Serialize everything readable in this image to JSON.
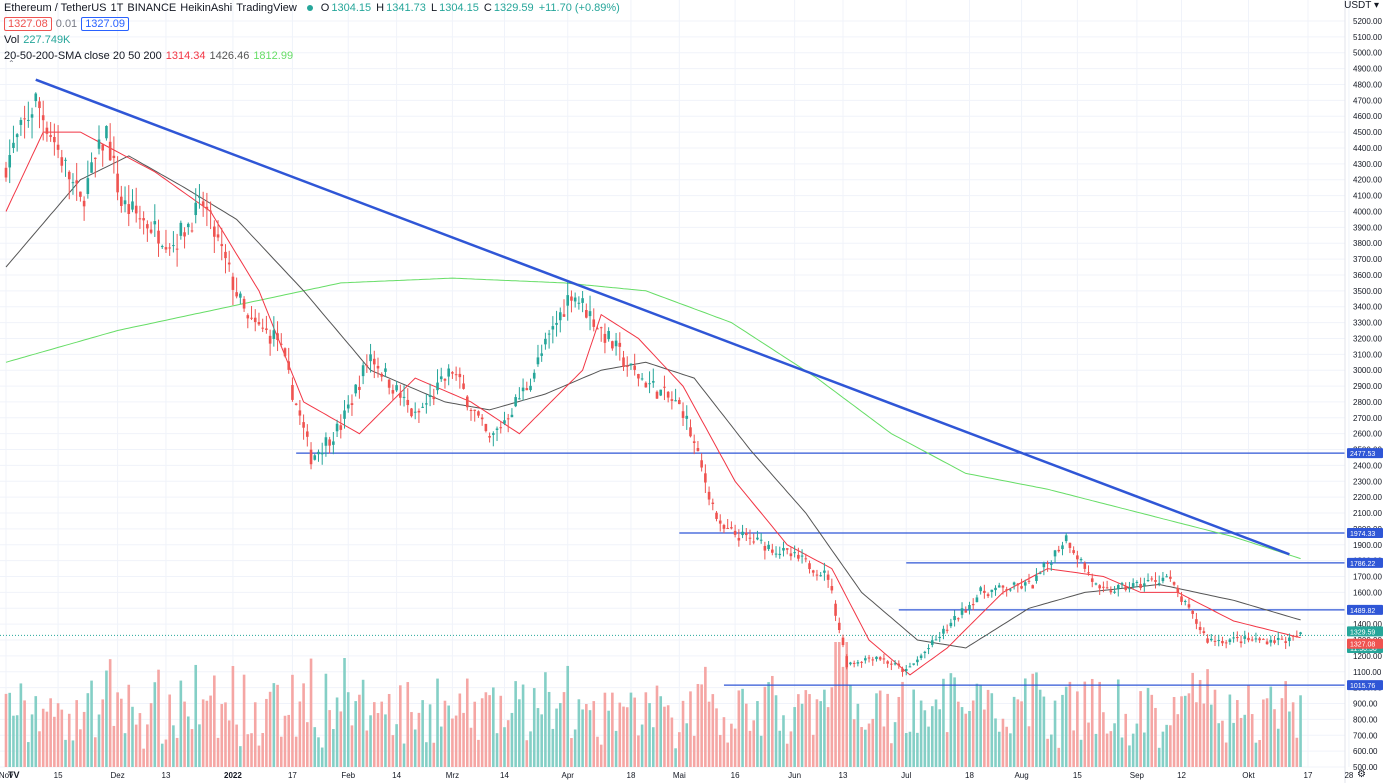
{
  "header": {
    "symbol": "Ethereum / TetherUS",
    "interval": "1T",
    "exchange": "BINANCE",
    "style": "HeikinAshi",
    "source": "TradingView",
    "o_label": "O",
    "o": "1304.15",
    "h_label": "H",
    "h": "1341.73",
    "l_label": "L",
    "l": "1304.15",
    "c_label": "C",
    "c": "1329.59",
    "change": "+11.70 (+0.89%)",
    "bid": "1327.08",
    "spread": "0.01",
    "ask": "1327.09"
  },
  "volume_legend": {
    "label": "Vol",
    "value": "227.749K"
  },
  "sma_legend": {
    "label": "20-50-200-SMA close 20 50 200",
    "sma20": "1314.34",
    "sma50": "1426.46",
    "sma200": "1812.99"
  },
  "currency": "USDT",
  "colors": {
    "up": "#26a69a",
    "down": "#ef5350",
    "volume_up": "#84cfc6",
    "volume_down": "#f5a6a4",
    "sma20": "#f23645",
    "sma50": "#555555",
    "sma200": "#66dd66",
    "drawing": "#2f56d6"
  },
  "chart_data": {
    "type": "candlestick",
    "ylim": [
      500,
      5300
    ],
    "y_ticks": [
      "5200.00",
      "5100.00",
      "5000.00",
      "4900.00",
      "4800.00",
      "4700.00",
      "4600.00",
      "4500.00",
      "4400.00",
      "4300.00",
      "4200.00",
      "4100.00",
      "4000.00",
      "3900.00",
      "3800.00",
      "3700.00",
      "3600.00",
      "3500.00",
      "3400.00",
      "3300.00",
      "3200.00",
      "3100.00",
      "3000.00",
      "2900.00",
      "2800.00",
      "2700.00",
      "2600.00",
      "2500.00",
      "2400.00",
      "2300.00",
      "2200.00",
      "2100.00",
      "2000.00",
      "1900.00",
      "1800.00",
      "1700.00",
      "1600.00",
      "1500.00",
      "1400.00",
      "1300.00",
      "1200.00",
      "1100.00",
      "1000.00",
      "900.00",
      "800.00",
      "700.00",
      "600.00",
      "500.00"
    ],
    "x_labels": [
      "Nov",
      "15",
      "Dez",
      "13",
      "2022",
      "17",
      "Feb",
      "14",
      "Mrz",
      "14",
      "Apr",
      "18",
      "Mai",
      "16",
      "Jun",
      "13",
      "Jul",
      "18",
      "Aug",
      "15",
      "Sep",
      "12",
      "Okt",
      "17",
      "28"
    ],
    "x_label_days": [
      0,
      14,
      30,
      43,
      61,
      77,
      92,
      105,
      120,
      134,
      151,
      168,
      181,
      196,
      212,
      225,
      242,
      259,
      273,
      288,
      304,
      316,
      334,
      350,
      361
    ],
    "close_anchors": [
      [
        0,
        4300
      ],
      [
        8,
        4700
      ],
      [
        12,
        4500
      ],
      [
        20,
        4050
      ],
      [
        27,
        4500
      ],
      [
        31,
        4050
      ],
      [
        45,
        3800
      ],
      [
        53,
        4050
      ],
      [
        65,
        3300
      ],
      [
        73,
        3200
      ],
      [
        82,
        2450
      ],
      [
        90,
        2650
      ],
      [
        98,
        3100
      ],
      [
        110,
        2700
      ],
      [
        120,
        3000
      ],
      [
        130,
        2550
      ],
      [
        140,
        2900
      ],
      [
        152,
        3500
      ],
      [
        157,
        3350
      ],
      [
        168,
        3000
      ],
      [
        182,
        2750
      ],
      [
        192,
        2000
      ],
      [
        204,
        1900
      ],
      [
        214,
        1800
      ],
      [
        221,
        1700
      ],
      [
        226,
        1150
      ],
      [
        234,
        1200
      ],
      [
        242,
        1100
      ],
      [
        252,
        1350
      ],
      [
        262,
        1600
      ],
      [
        276,
        1650
      ],
      [
        285,
        1950
      ],
      [
        294,
        1600
      ],
      [
        305,
        1650
      ],
      [
        312,
        1700
      ],
      [
        323,
        1300
      ],
      [
        330,
        1300
      ],
      [
        345,
        1300
      ],
      [
        348,
        1329.59
      ]
    ],
    "sma20_anchors": [
      [
        0,
        4000
      ],
      [
        10,
        4500
      ],
      [
        20,
        4500
      ],
      [
        40,
        4250
      ],
      [
        55,
        4000
      ],
      [
        68,
        3500
      ],
      [
        80,
        2800
      ],
      [
        95,
        2600
      ],
      [
        110,
        2950
      ],
      [
        125,
        2800
      ],
      [
        138,
        2600
      ],
      [
        155,
        3000
      ],
      [
        160,
        3350
      ],
      [
        170,
        3200
      ],
      [
        182,
        2900
      ],
      [
        196,
        2300
      ],
      [
        210,
        1900
      ],
      [
        222,
        1750
      ],
      [
        232,
        1300
      ],
      [
        243,
        1080
      ],
      [
        253,
        1250
      ],
      [
        268,
        1600
      ],
      [
        280,
        1750
      ],
      [
        295,
        1700
      ],
      [
        305,
        1600
      ],
      [
        315,
        1600
      ],
      [
        330,
        1420
      ],
      [
        348,
        1314.34
      ]
    ],
    "sma50_anchors": [
      [
        0,
        3650
      ],
      [
        20,
        4200
      ],
      [
        33,
        4350
      ],
      [
        48,
        4150
      ],
      [
        62,
        3950
      ],
      [
        80,
        3500
      ],
      [
        98,
        3000
      ],
      [
        118,
        2800
      ],
      [
        130,
        2750
      ],
      [
        145,
        2850
      ],
      [
        160,
        3000
      ],
      [
        172,
        3050
      ],
      [
        185,
        2950
      ],
      [
        200,
        2500
      ],
      [
        215,
        2100
      ],
      [
        230,
        1600
      ],
      [
        245,
        1300
      ],
      [
        258,
        1250
      ],
      [
        275,
        1500
      ],
      [
        290,
        1600
      ],
      [
        310,
        1650
      ],
      [
        330,
        1550
      ],
      [
        348,
        1426.46
      ]
    ],
    "sma200_anchors": [
      [
        0,
        3050
      ],
      [
        30,
        3250
      ],
      [
        60,
        3400
      ],
      [
        90,
        3550
      ],
      [
        120,
        3580
      ],
      [
        150,
        3550
      ],
      [
        172,
        3500
      ],
      [
        195,
        3300
      ],
      [
        218,
        2950
      ],
      [
        238,
        2600
      ],
      [
        258,
        2350
      ],
      [
        280,
        2250
      ],
      [
        305,
        2100
      ],
      [
        330,
        1950
      ],
      [
        348,
        1812.99
      ]
    ],
    "horizontal_levels": [
      {
        "price": 2477.53,
        "label": "2477.53",
        "from_day": 78
      },
      {
        "price": 1974.33,
        "label": "1974.33",
        "from_day": 181
      },
      {
        "price": 1786.22,
        "label": "1786.22",
        "from_day": 242
      },
      {
        "price": 1489.82,
        "label": "1489.82",
        "from_day": 240
      },
      {
        "price": 1015.76,
        "label": "1015.76",
        "from_day": 193
      }
    ],
    "trendline": {
      "from": [
        8,
        4830
      ],
      "to": [
        345,
        1840
      ]
    },
    "price_tags": [
      {
        "price": 1329.59,
        "label": "1329.59",
        "color": "#26a69a"
      },
      {
        "price": 1262,
        "label": "11:50:50",
        "color": "#26a69a"
      },
      {
        "price": 1327.08,
        "label": "1327.08",
        "color": "#ef5350"
      }
    ]
  }
}
